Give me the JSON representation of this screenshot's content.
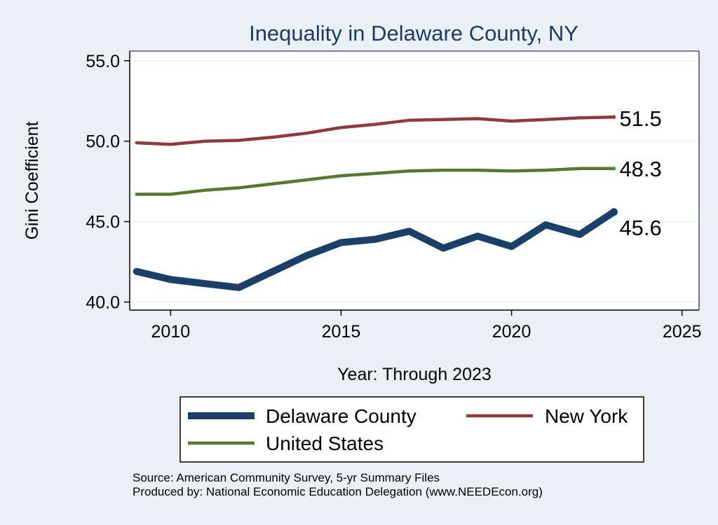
{
  "chart_data": {
    "type": "line",
    "title": "Inequality in Delaware County, NY",
    "xlabel": "Year: Through 2023",
    "ylabel": "Gini Coefficient",
    "xlim": [
      2008.8,
      2025.5
    ],
    "ylim": [
      39.5,
      55.6
    ],
    "xticks": [
      2010,
      2015,
      2020,
      2025
    ],
    "yticks": [
      40.0,
      45.0,
      50.0,
      55.0
    ],
    "ytick_labels": [
      "40.0",
      "45.0",
      "50.0",
      "55.0"
    ],
    "grid": true,
    "legend_position": "bottom",
    "x": [
      2009,
      2010,
      2011,
      2012,
      2013,
      2014,
      2015,
      2016,
      2017,
      2018,
      2019,
      2020,
      2021,
      2022,
      2023
    ],
    "series": [
      {
        "name": "Delaware County",
        "color": "#1a4068",
        "values": [
          41.9,
          41.4,
          41.15,
          40.9,
          41.9,
          42.9,
          43.7,
          43.9,
          44.4,
          43.35,
          44.1,
          43.45,
          44.8,
          44.2,
          45.6
        ],
        "end_label": "45.6"
      },
      {
        "name": "New York",
        "color": "#8f3a3c",
        "values": [
          49.9,
          49.8,
          50.0,
          50.05,
          50.25,
          50.5,
          50.85,
          51.05,
          51.3,
          51.35,
          51.4,
          51.25,
          51.35,
          51.45,
          51.5
        ],
        "end_label": "51.5"
      },
      {
        "name": "United States",
        "color": "#56782f",
        "values": [
          46.7,
          46.7,
          46.95,
          47.1,
          47.35,
          47.6,
          47.85,
          48.0,
          48.15,
          48.2,
          48.2,
          48.15,
          48.2,
          48.3,
          48.3
        ],
        "end_label": "48.3"
      }
    ]
  },
  "source": {
    "line1": "Source: American Community Survey, 5-yr Summary Files",
    "line2": "Produced by: National Economic Education Delegation (www.NEEDEcon.org)"
  }
}
